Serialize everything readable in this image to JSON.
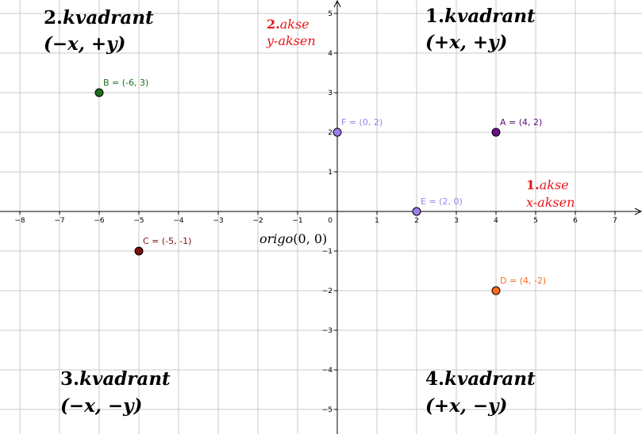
{
  "quadrants": [
    {
      "num": "2.",
      "word": "kvadrant",
      "coords": "(−x, +y)"
    },
    {
      "num": "1.",
      "word": "kvadrant",
      "coords": "(+x, +y)"
    },
    {
      "num": "3.",
      "word": "kvadrant",
      "coords": "(−x, −y)"
    },
    {
      "num": "4.",
      "word": "kvadrant",
      "coords": "(+x, −y)"
    }
  ],
  "axis_notes": {
    "y": {
      "num": "2.",
      "word": "akse",
      "name": "y-aksen"
    },
    "x": {
      "num": "1.",
      "word": "akse",
      "name": "x-aksen"
    }
  },
  "origin_label": {
    "word": "origo",
    "coords": "(0, 0)"
  },
  "colors": {
    "label_red": "#e8161c"
  },
  "chart_data": {
    "type": "scatter",
    "xlim": [
      -8.5,
      7.6
    ],
    "ylim": [
      -5.6,
      5.3
    ],
    "grid": true,
    "x_ticks": [
      -8,
      -7,
      -6,
      -5,
      -4,
      -3,
      -2,
      -1,
      1,
      2,
      3,
      4,
      5,
      6,
      7
    ],
    "y_ticks": [
      -5,
      -4,
      -3,
      -2,
      -1,
      1,
      2,
      3,
      4,
      5
    ],
    "origin_tick": "0",
    "points": [
      {
        "label": "A = (4, 2)",
        "x": 4,
        "y": 2,
        "color": "#6a0f8e",
        "label_color": "#5a0a7a"
      },
      {
        "label": "B = (-6, 3)",
        "x": -6,
        "y": 3,
        "color": "#1e6e1e",
        "label_color": "#1e6e1e"
      },
      {
        "label": "C = (-5, -1)",
        "x": -5,
        "y": -1,
        "color": "#7a1010",
        "label_color": "#7a1010"
      },
      {
        "label": "D = (4, -2)",
        "x": 4,
        "y": -2,
        "color": "#ff6a1a",
        "label_color": "#ff6a1a"
      },
      {
        "label": "E = (2, 0)",
        "x": 2,
        "y": 0,
        "color": "#9b7ff0",
        "label_color": "#9b7ff0"
      },
      {
        "label": "F = (0, 2)",
        "x": 0,
        "y": 2,
        "color": "#9b7ff0",
        "label_color": "#9b7ff0"
      }
    ]
  }
}
